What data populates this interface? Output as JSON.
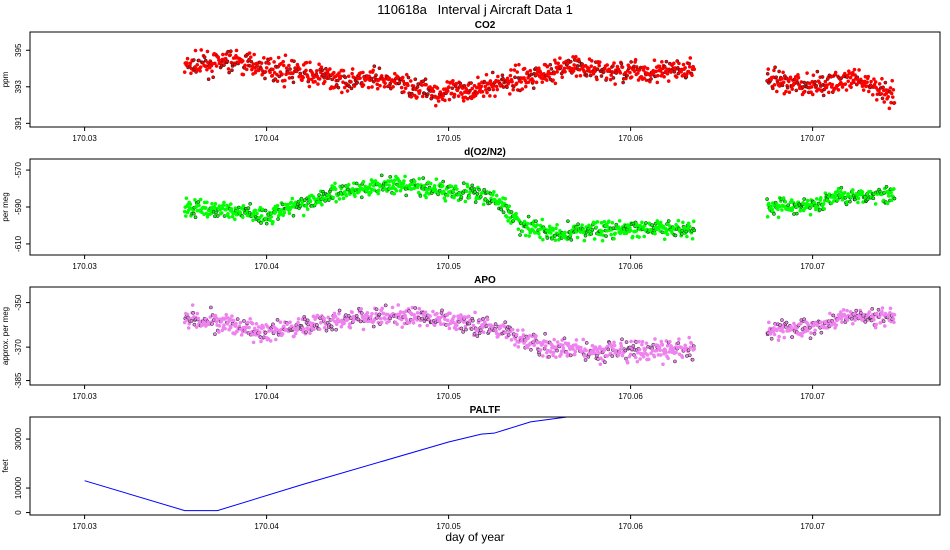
{
  "figure": {
    "title": "110618a   Interval j Aircraft Data 1",
    "xlabel": "day of year"
  },
  "chart_data": [
    {
      "type": "scatter",
      "title": "CO2",
      "ylabel": "ppm",
      "xlim": [
        170.027,
        170.077
      ],
      "ylim": [
        390.8,
        396.0
      ],
      "xticks": [
        170.03,
        170.04,
        170.05,
        170.06,
        170.07
      ],
      "yticks": [
        391,
        393,
        395
      ],
      "grid": false,
      "color": "#ff0000",
      "segments": [
        {
          "x_start": 170.0355,
          "x_end": 170.0635,
          "anchors": [
            [
              170.0355,
              394.1
            ],
            [
              170.038,
              394.4
            ],
            [
              170.041,
              393.9
            ],
            [
              170.044,
              393.4
            ],
            [
              170.047,
              393.3
            ],
            [
              170.0495,
              392.6
            ],
            [
              170.052,
              393.0
            ],
            [
              170.0545,
              393.6
            ],
            [
              170.0565,
              394.1
            ],
            [
              170.059,
              393.8
            ],
            [
              170.0635,
              393.9
            ]
          ],
          "noise": 0.55
        },
        {
          "x_start": 170.0675,
          "x_end": 170.0745,
          "anchors": [
            [
              170.0675,
              393.4
            ],
            [
              170.07,
              393.0
            ],
            [
              170.072,
              393.4
            ],
            [
              170.0745,
              392.6
            ]
          ],
          "noise": 0.55
        }
      ]
    },
    {
      "type": "scatter",
      "title": "d(O2/N2)",
      "ylabel": "per meg",
      "xlim": [
        170.027,
        170.077
      ],
      "ylim": [
        -616,
        -564
      ],
      "xticks": [
        170.03,
        170.04,
        170.05,
        170.06,
        170.07
      ],
      "yticks": [
        -610,
        -590,
        -570
      ],
      "grid": false,
      "color": "#00ff00",
      "segments": [
        {
          "x_start": 170.0355,
          "x_end": 170.0635,
          "anchors": [
            [
              170.0355,
              -590
            ],
            [
              170.038,
              -592
            ],
            [
              170.04,
              -595
            ],
            [
              170.042,
              -588
            ],
            [
              170.044,
              -582
            ],
            [
              170.0465,
              -578
            ],
            [
              170.049,
              -580
            ],
            [
              170.051,
              -582
            ],
            [
              170.0525,
              -585
            ],
            [
              170.054,
              -600
            ],
            [
              170.056,
              -605
            ],
            [
              170.058,
              -602
            ],
            [
              170.0635,
              -602
            ]
          ],
          "noise": 4.5
        },
        {
          "x_start": 170.0675,
          "x_end": 170.0745,
          "anchors": [
            [
              170.0675,
              -590
            ],
            [
              170.07,
              -589
            ],
            [
              170.0715,
              -584
            ],
            [
              170.0745,
              -583
            ]
          ],
          "noise": 4.0
        }
      ]
    },
    {
      "type": "scatter",
      "title": "APO",
      "ylabel": "approx. per meg",
      "xlim": [
        170.027,
        170.077
      ],
      "ylim": [
        -387,
        -343
      ],
      "xticks": [
        170.03,
        170.04,
        170.05,
        170.06,
        170.07
      ],
      "yticks": [
        -385,
        -370,
        -350
      ],
      "grid": false,
      "color": "#ee82ee",
      "segments": [
        {
          "x_start": 170.0355,
          "x_end": 170.0635,
          "anchors": [
            [
              170.0355,
              -356
            ],
            [
              170.038,
              -360
            ],
            [
              170.04,
              -364
            ],
            [
              170.042,
              -360
            ],
            [
              170.045,
              -357
            ],
            [
              170.048,
              -356
            ],
            [
              170.051,
              -359
            ],
            [
              170.053,
              -363
            ],
            [
              170.055,
              -370
            ],
            [
              170.058,
              -372
            ],
            [
              170.0635,
              -371
            ]
          ],
          "noise": 4.0
        },
        {
          "x_start": 170.0675,
          "x_end": 170.0745,
          "anchors": [
            [
              170.0675,
              -363
            ],
            [
              170.07,
              -361
            ],
            [
              170.072,
              -356
            ],
            [
              170.0745,
              -356
            ]
          ],
          "noise": 3.5
        }
      ]
    },
    {
      "type": "line",
      "title": "PALTF",
      "ylabel": "feet",
      "xlim": [
        170.027,
        170.077
      ],
      "ylim": [
        -1000,
        39000
      ],
      "xticks": [
        170.03,
        170.04,
        170.05,
        170.06,
        170.07
      ],
      "yticks": [
        0,
        10000,
        30000
      ],
      "grid": false,
      "color": "#0000ff",
      "x": [
        170.03,
        170.0355,
        170.0373,
        170.042,
        170.05,
        170.0518,
        170.0525,
        170.0545,
        170.0565,
        170.0745
      ],
      "y": [
        13000,
        800,
        800,
        11500,
        28800,
        32000,
        32400,
        37000,
        39000,
        39000
      ]
    }
  ]
}
